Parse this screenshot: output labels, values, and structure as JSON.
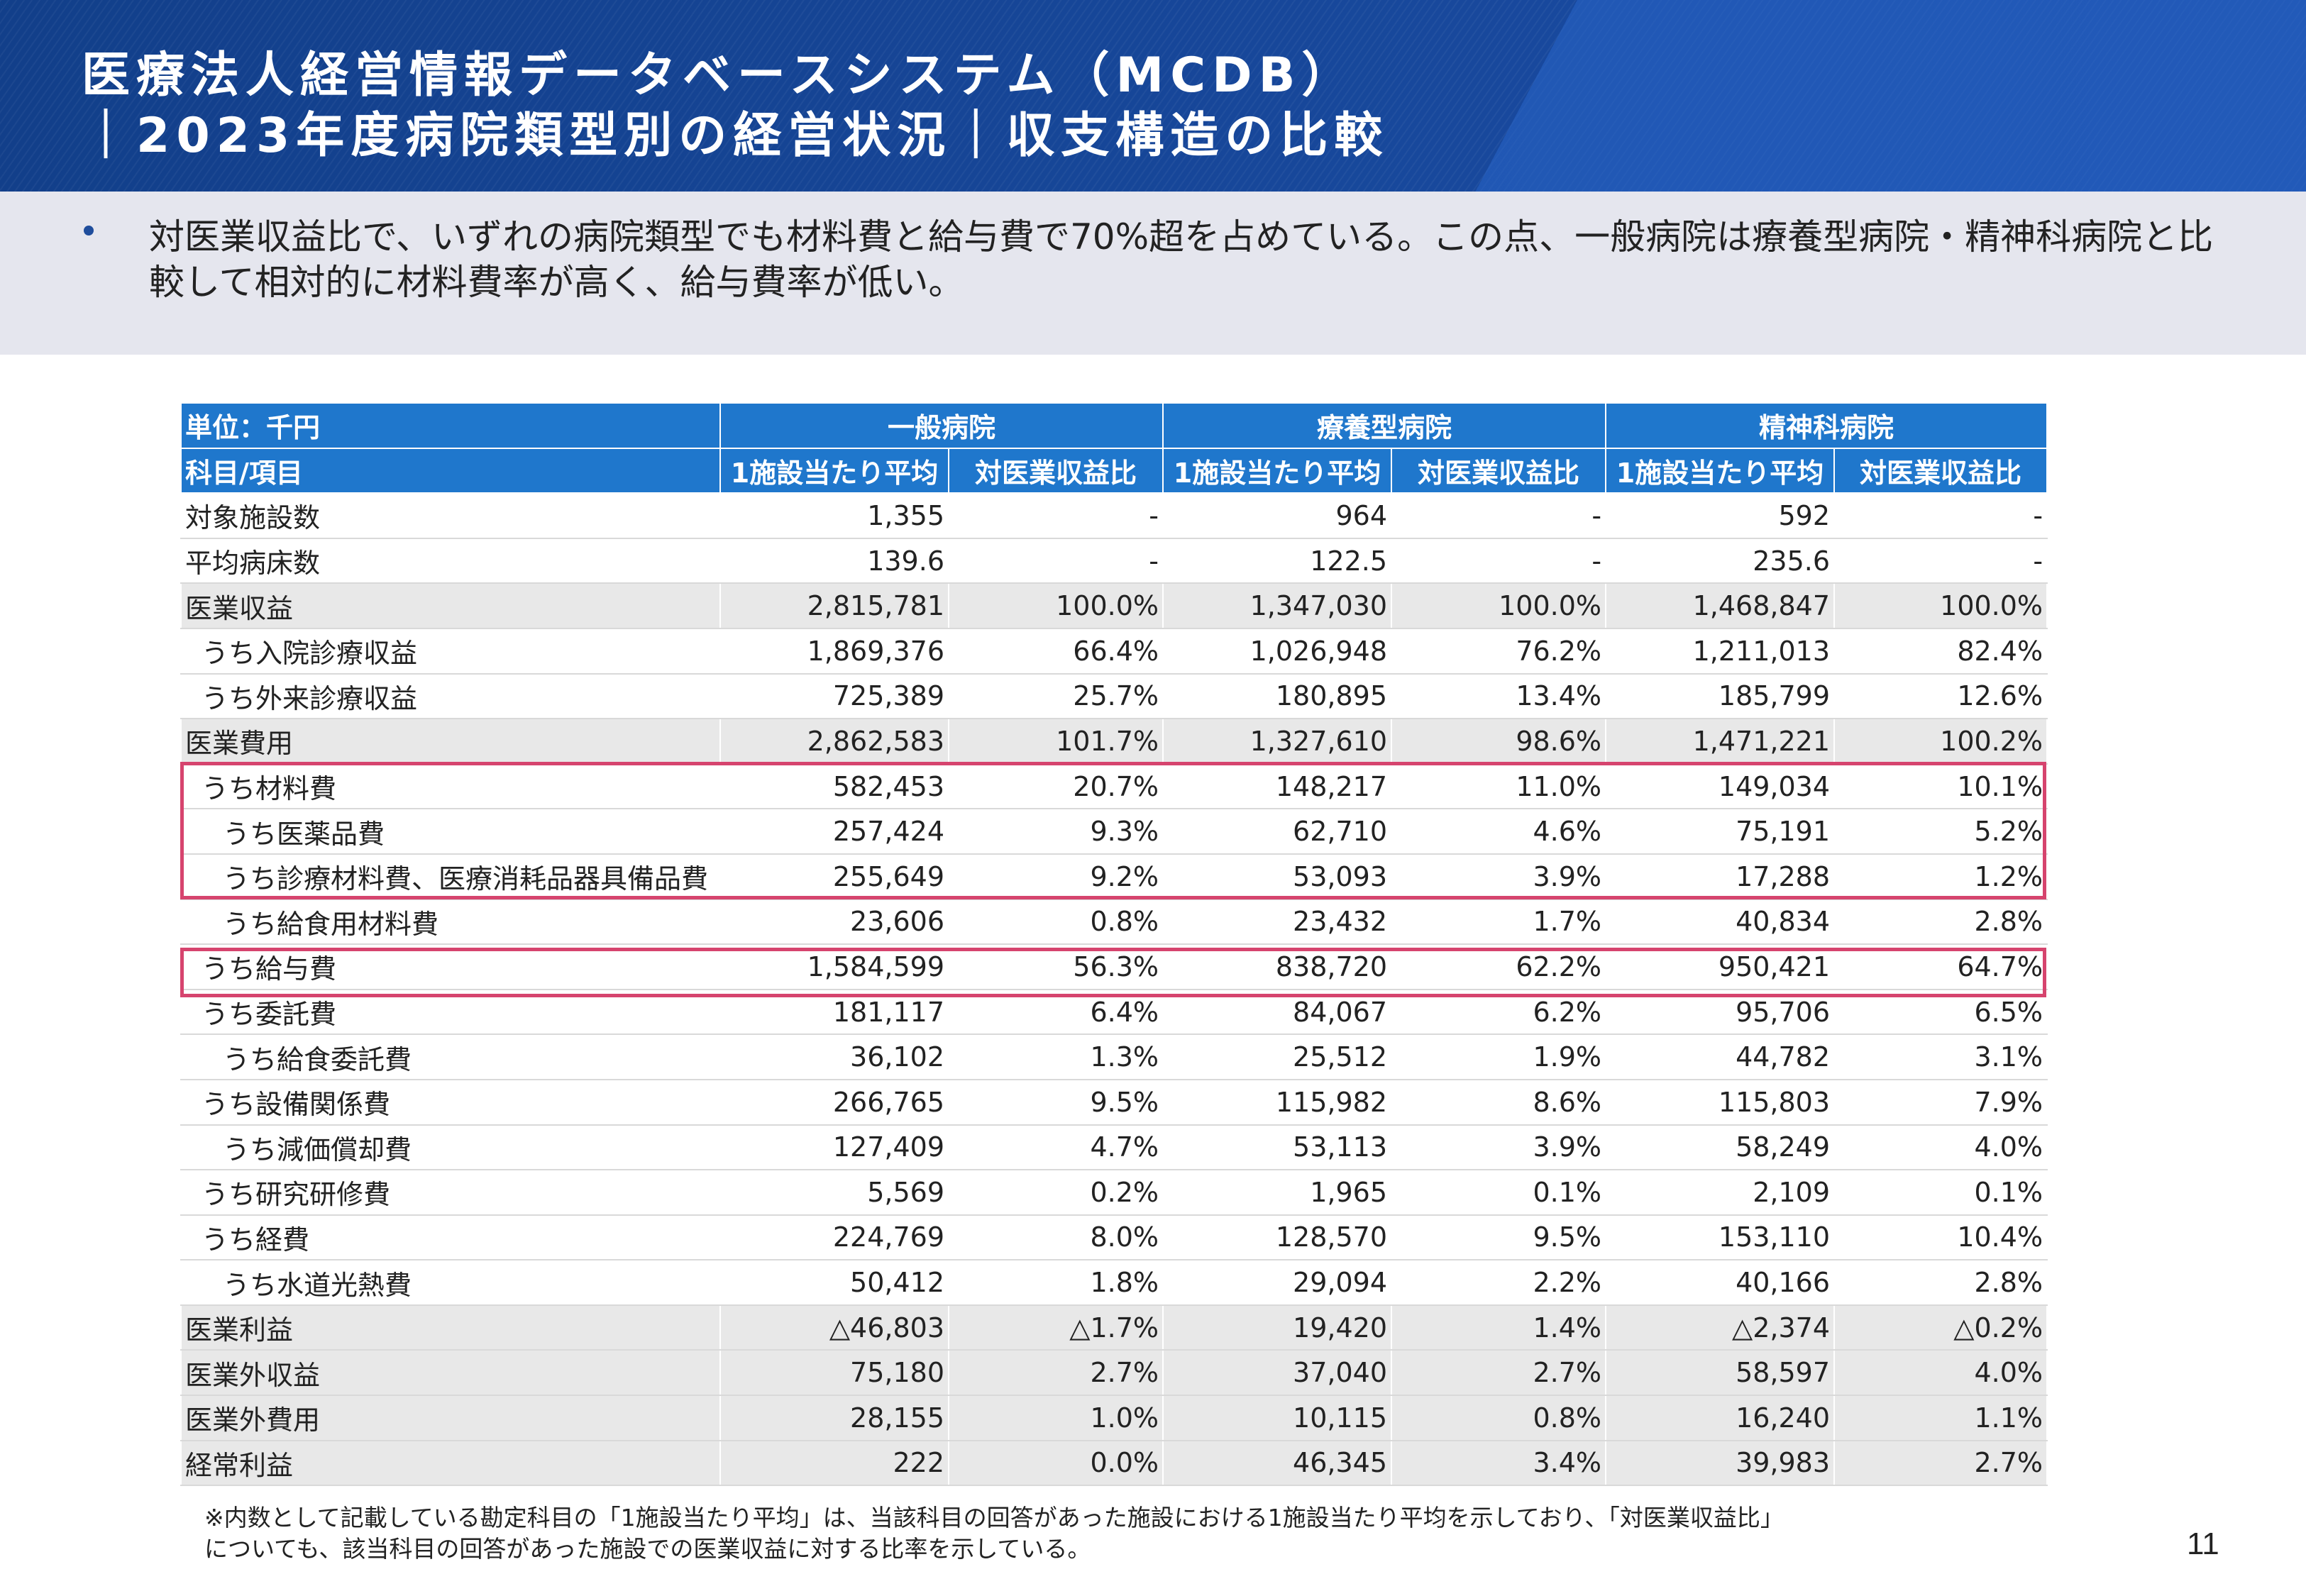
{
  "header": {
    "title_line1": "医療法人経営情報データベースシステム（MCDB）",
    "title_line2": "｜2023年度病院類型別の経営状況｜収支構造の比較"
  },
  "summary": {
    "bullet": "対医業収益比で、いずれの病院類型でも材料費と給与費で70%超を占めている。この点、一般病院は療養型病院・精神科病院と比較して相対的に材料費率が高く、給与費率が低い。"
  },
  "table": {
    "unit_label": "単位：千円",
    "item_header": "科目/項目",
    "groups": [
      "一般病院",
      "療養型病院",
      "精神科病院"
    ],
    "subheaders": [
      "1施設当たり平均",
      "対医業収益比"
    ],
    "rows": [
      {
        "label": "対象施設数",
        "cells": [
          "1,355",
          "-",
          "964",
          "-",
          "592",
          "-"
        ]
      },
      {
        "label": "平均病床数",
        "cells": [
          "139.6",
          "-",
          "122.5",
          "-",
          "235.6",
          "-"
        ]
      },
      {
        "label": "医業収益",
        "cells": [
          "2,815,781",
          "100.0%",
          "1,347,030",
          "100.0%",
          "1,468,847",
          "100.0%"
        ]
      },
      {
        "label": "うち入院診療収益",
        "cells": [
          "1,869,376",
          "66.4%",
          "1,026,948",
          "76.2%",
          "1,211,013",
          "82.4%"
        ]
      },
      {
        "label": "うち外来診療収益",
        "cells": [
          "725,389",
          "25.7%",
          "180,895",
          "13.4%",
          "185,799",
          "12.6%"
        ]
      },
      {
        "label": "医業費用",
        "cells": [
          "2,862,583",
          "101.7%",
          "1,327,610",
          "98.6%",
          "1,471,221",
          "100.2%"
        ]
      },
      {
        "label": "うち材料費",
        "cells": [
          "582,453",
          "20.7%",
          "148,217",
          "11.0%",
          "149,034",
          "10.1%"
        ]
      },
      {
        "label": "うち医薬品費",
        "cells": [
          "257,424",
          "9.3%",
          "62,710",
          "4.6%",
          "75,191",
          "5.2%"
        ]
      },
      {
        "label": "うち診療材料費、医療消耗品器具備品費",
        "cells": [
          "255,649",
          "9.2%",
          "53,093",
          "3.9%",
          "17,288",
          "1.2%"
        ]
      },
      {
        "label": "うち給食用材料費",
        "cells": [
          "23,606",
          "0.8%",
          "23,432",
          "1.7%",
          "40,834",
          "2.8%"
        ]
      },
      {
        "label": "うち給与費",
        "cells": [
          "1,584,599",
          "56.3%",
          "838,720",
          "62.2%",
          "950,421",
          "64.7%"
        ]
      },
      {
        "label": "うち委託費",
        "cells": [
          "181,117",
          "6.4%",
          "84,067",
          "6.2%",
          "95,706",
          "6.5%"
        ]
      },
      {
        "label": "うち給食委託費",
        "cells": [
          "36,102",
          "1.3%",
          "25,512",
          "1.9%",
          "44,782",
          "3.1%"
        ]
      },
      {
        "label": "うち設備関係費",
        "cells": [
          "266,765",
          "9.5%",
          "115,982",
          "8.6%",
          "115,803",
          "7.9%"
        ]
      },
      {
        "label": "うち減価償却費",
        "cells": [
          "127,409",
          "4.7%",
          "53,113",
          "3.9%",
          "58,249",
          "4.0%"
        ]
      },
      {
        "label": "うち研究研修費",
        "cells": [
          "5,569",
          "0.2%",
          "1,965",
          "0.1%",
          "2,109",
          "0.1%"
        ]
      },
      {
        "label": "うち経費",
        "cells": [
          "224,769",
          "8.0%",
          "128,570",
          "9.5%",
          "153,110",
          "10.4%"
        ]
      },
      {
        "label": "うち水道光熱費",
        "cells": [
          "50,412",
          "1.8%",
          "29,094",
          "2.2%",
          "40,166",
          "2.8%"
        ]
      },
      {
        "label": "医業利益",
        "cells": [
          "△46,803",
          "△1.7%",
          "19,420",
          "1.4%",
          "△2,374",
          "△0.2%"
        ]
      },
      {
        "label": "医業外収益",
        "cells": [
          "75,180",
          "2.7%",
          "37,040",
          "2.7%",
          "58,597",
          "4.0%"
        ]
      },
      {
        "label": "医業外費用",
        "cells": [
          "28,155",
          "1.0%",
          "10,115",
          "0.8%",
          "16,240",
          "1.1%"
        ]
      },
      {
        "label": "経常利益",
        "cells": [
          "222",
          "0.0%",
          "46,345",
          "3.4%",
          "39,983",
          "2.7%"
        ]
      }
    ]
  },
  "footnote": {
    "line1": "※内数として記載している勘定科目の「1施設当たり平均」は、当該科目の回答があった施設における1施設当たり平均を示しており、「対医業収益比」",
    "line2": "についても、該当科目の回答があった施設での医業収益に対する比率を示している。"
  },
  "page_number": "11",
  "colors": {
    "header_blue": "#17479a",
    "table_header": "#1f77cc",
    "highlight": "#d6446e",
    "summary_band": "#e5e6ee"
  }
}
